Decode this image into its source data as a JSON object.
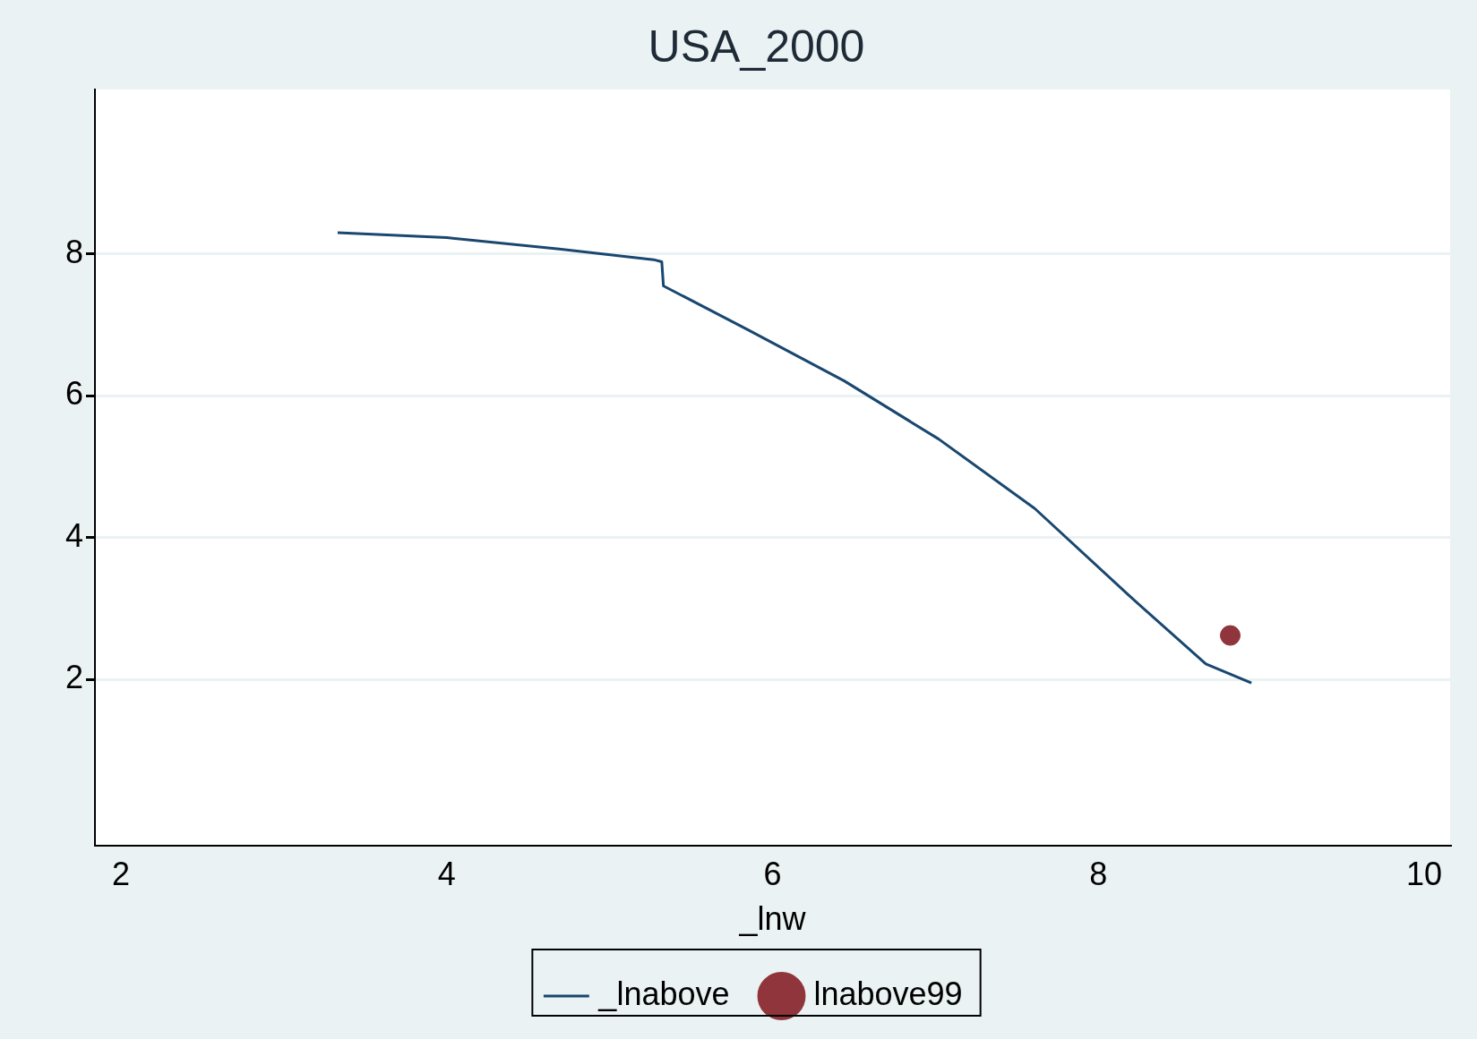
{
  "chart_data": {
    "type": "line",
    "title": "USA_2000",
    "xlabel": "_lnw",
    "xlim": [
      1.84,
      10.16
    ],
    "xticks": [
      2,
      4,
      6,
      8,
      10
    ],
    "ylim": [
      -0.34,
      10.32
    ],
    "yticks": [
      2,
      4,
      6,
      8
    ],
    "grid": "y",
    "legend": "bottom",
    "series": [
      {
        "name": "_lnabove",
        "type": "line",
        "color": "#1a476f",
        "marker": "none",
        "x": [
          3.33,
          4.0,
          4.69,
          5.27,
          5.32,
          5.33,
          5.85,
          6.44,
          7.02,
          7.61,
          8.19,
          8.66,
          8.94
        ],
        "values": [
          8.3,
          8.23,
          8.07,
          7.92,
          7.89,
          7.55,
          6.93,
          6.21,
          5.39,
          4.41,
          3.18,
          2.22,
          1.95
        ]
      },
      {
        "name": "lnabove99",
        "type": "scatter",
        "color": "#90353b",
        "marker": "circle",
        "x": [
          8.81
        ],
        "values": [
          2.62
        ]
      }
    ]
  }
}
